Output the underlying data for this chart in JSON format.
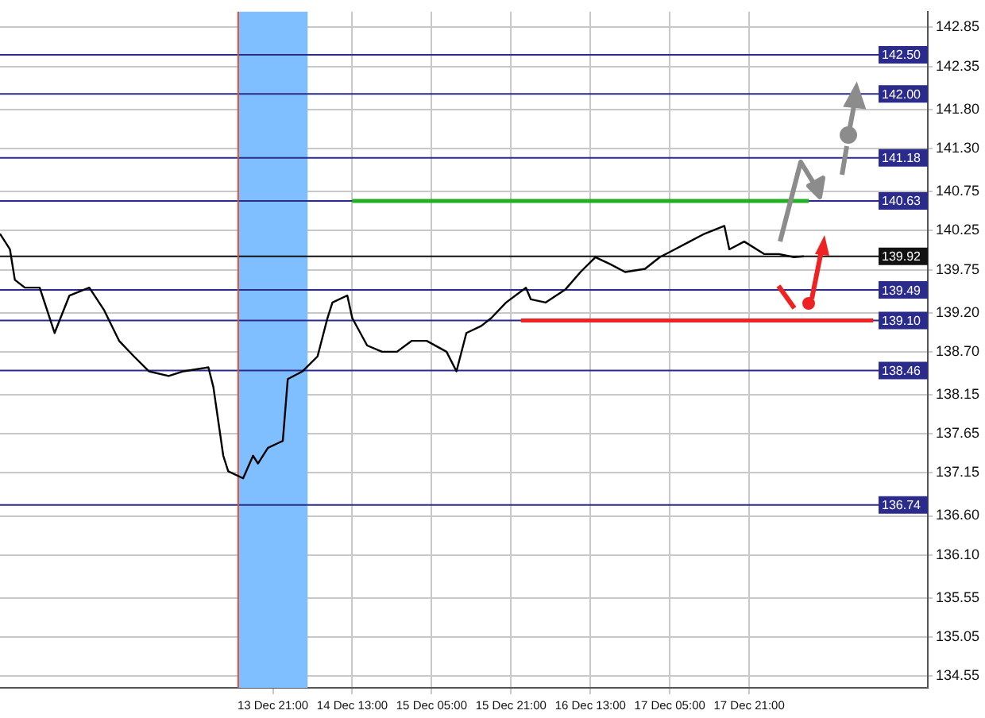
{
  "chart_data": {
    "type": "line",
    "x": [
      "--12-11T14:00",
      "--12-11T16:00",
      "--12-11T17:00",
      "--12-11T19:00",
      "--12-11T22:00",
      "--12-12T01:00",
      "--12-12T04:00",
      "--12-12T08:00",
      "--12-12T11:00",
      "--12-12T14:00",
      "--12-12T17:00",
      "--12-12T20:00",
      "--12-13T00:00",
      "--12-13T03:00",
      "--12-13T08:00",
      "--12-13T09:00",
      "--12-13T11:00",
      "--12-13T12:00",
      "--12-13T15:00",
      "--12-13T17:00",
      "--12-13T18:00",
      "--12-13T20:00",
      "--12-13T22:00",
      "--12-13T23:00",
      "--12-14T00:00",
      "--12-14T03:00",
      "--12-14T06:00",
      "--12-14T08:00",
      "--12-14T09:00",
      "--12-14T12:00",
      "--12-14T13:00",
      "--12-14T16:00",
      "--12-14T19:00",
      "--12-14T22:00",
      "--12-15T01:00",
      "--12-15T04:00",
      "--12-15T08:00",
      "--12-15T10:00",
      "--12-15T12:00",
      "--12-15T15:00",
      "--12-15T17:00",
      "--12-15T20:00",
      "--12-16T00:00",
      "--12-16T01:00",
      "--12-16T04:00",
      "--12-16T08:00",
      "--12-16T11:00",
      "--12-16T14:00",
      "--12-16T17:00",
      "--12-16T20:00",
      "--12-17T00:00",
      "--12-17T03:00",
      "--12-17T06:00",
      "--12-17T09:00",
      "--12-17T12:00",
      "--12-17T16:00",
      "--12-17T17:00",
      "--12-17T20:00",
      "--12-18T00:00",
      "--12-18T03:00",
      "--12-18T06:00",
      "--12-18T08:00"
    ],
    "series": [
      {
        "color": "#000000",
        "values": [
          140.21,
          140.01,
          139.62,
          139.52,
          139.52,
          138.94,
          139.42,
          139.52,
          139.23,
          138.84,
          138.64,
          138.45,
          138.39,
          138.45,
          138.5,
          138.25,
          137.37,
          137.17,
          137.08,
          137.37,
          137.27,
          137.47,
          137.53,
          137.56,
          138.35,
          138.45,
          138.64,
          139.13,
          139.33,
          139.42,
          139.13,
          138.78,
          138.7,
          138.7,
          138.84,
          138.84,
          138.7,
          138.45,
          138.94,
          139.03,
          139.13,
          139.33,
          139.52,
          139.37,
          139.33,
          139.5,
          139.72,
          139.91,
          139.82,
          139.72,
          139.76,
          139.91,
          140.01,
          140.11,
          140.21,
          140.31,
          140.01,
          140.11,
          139.95,
          139.95,
          139.91,
          139.92
        ]
      },
      {
        "type": "line",
        "color": "#22b022",
        "x": [
          "--12-14T13:00",
          "--12-18T09:00"
        ],
        "values": [
          140.63,
          140.63
        ]
      },
      {
        "type": "line",
        "color": "#ee2222",
        "x": [
          "--12-15T23:00",
          "--12-18T22:00"
        ],
        "values": [
          139.1,
          139.1
        ]
      }
    ],
    "xlim": [
      "--12-11T14:00",
      "--12-19T09:00"
    ],
    "xticks": [
      {
        "value": "--12-13T21:00",
        "label": "13 Dec 21:00"
      },
      {
        "value": "--12-14T13:00",
        "label": "14 Dec 13:00"
      },
      {
        "value": "--12-15T05:00",
        "label": "15 Dec 05:00"
      },
      {
        "value": "--12-15T21:00",
        "label": "15 Dec 21:00"
      },
      {
        "value": "--12-16T13:00",
        "label": "16 Dec 13:00"
      },
      {
        "value": "--12-17T05:00",
        "label": "17 Dec 05:00"
      },
      {
        "value": "--12-17T21:00",
        "label": "17 Dec 21:00"
      }
    ],
    "ylim": [
      134.4,
      143.05
    ],
    "yticks": [
      "142.85",
      "142.35",
      "141.80",
      "141.30",
      "140.75",
      "140.25",
      "139.75",
      "139.20",
      "138.70",
      "138.15",
      "137.65",
      "137.15",
      "136.60",
      "136.10",
      "135.55",
      "135.05",
      "134.55"
    ],
    "ref_lines": [
      {
        "axis": "y",
        "value": 142.5,
        "label": "142.50",
        "color": "#2b2b8c"
      },
      {
        "axis": "y",
        "value": 142.0,
        "label": "142.00",
        "color": "#2b2b8c"
      },
      {
        "axis": "y",
        "value": 141.18,
        "label": "141.18",
        "color": "#2b2b8c"
      },
      {
        "axis": "y",
        "value": 140.63,
        "label": "140.63",
        "color": "#2b2b8c"
      },
      {
        "axis": "y",
        "value": 139.92,
        "label": "139.92",
        "color": "#111111"
      },
      {
        "axis": "y",
        "value": 139.49,
        "label": "139.49",
        "color": "#2b2b8c"
      },
      {
        "axis": "y",
        "value": 139.1,
        "label": "139.10",
        "color": "#2b2b8c"
      },
      {
        "axis": "y",
        "value": 138.46,
        "label": "138.46",
        "color": "#2b2b8c"
      },
      {
        "axis": "y",
        "value": 136.74,
        "label": "136.74",
        "color": "#2b2b8c"
      },
      {
        "axis": "x",
        "value": "--12-13T14:00",
        "color": "#e05030"
      }
    ],
    "bands": [
      {
        "axis": "x",
        "from": "--12-13T14:00",
        "to": "--12-14T04:00",
        "color": "#7fbfff"
      }
    ],
    "grid": true,
    "legend": false,
    "marker": "none",
    "line_style": "solid"
  }
}
